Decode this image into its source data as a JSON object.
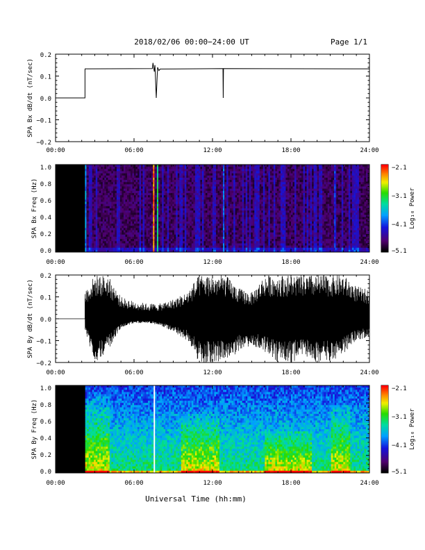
{
  "header": {
    "title": "2018/02/06  00:00−24:00 UT",
    "page": "Page 1/1"
  },
  "footer": {
    "xlabel": "Universal Time (hh:mm)"
  },
  "chart_data": [
    {
      "type": "line",
      "id": "bx-dbdt",
      "ylabel": "SPA Bx dB/dt (nT/sec)",
      "xlim": [
        0,
        24
      ],
      "ylim": [
        -0.2,
        0.2
      ],
      "x_ticks": [
        "00:00",
        "06:00",
        "12:00",
        "18:00",
        "24:00"
      ],
      "y_ticks": [
        "0.2",
        "0.1",
        "0.0",
        "−0.1",
        "−0.2"
      ],
      "x": [
        0,
        2.25,
        2.25,
        2.26,
        7.4,
        7.45,
        7.55,
        7.6,
        7.7,
        7.8,
        7.9,
        8.0,
        12.8,
        12.82,
        12.84,
        24
      ],
      "values": [
        0.0,
        0.0,
        0.13,
        0.133,
        0.134,
        0.16,
        0.12,
        0.15,
        0.0,
        0.14,
        0.125,
        0.132,
        0.134,
        0.0,
        0.134,
        0.133
      ]
    },
    {
      "type": "heatmap",
      "id": "bx-spectrogram",
      "ylabel": "SPA Bx Freq (Hz)",
      "xlim": [
        0,
        24
      ],
      "ylim": [
        0.0,
        1.0
      ],
      "x_ticks": [
        "00:00",
        "06:00",
        "12:00",
        "18:00",
        "24:00"
      ],
      "y_ticks": [
        "1.0",
        "0.8",
        "0.6",
        "0.4",
        "0.2",
        "0.0"
      ],
      "colorbar": {
        "label": "Log₁₀ Power",
        "range": [
          -5.1,
          -2.1
        ],
        "ticks": [
          "−2.1",
          "−3.1",
          "−4.1",
          "−5.1"
        ]
      },
      "no_data_until": 2.25,
      "background_level": -4.8,
      "bright_lines": [
        {
          "x": 2.25,
          "level": -3.9
        },
        {
          "x": 7.45,
          "level": -2.4
        },
        {
          "x": 7.75,
          "level": -3.3
        },
        {
          "x": 12.8,
          "level": -4.0
        },
        {
          "x": 21.3,
          "level": -4.2
        }
      ]
    },
    {
      "type": "line",
      "id": "by-dbdt",
      "ylabel": "SPA By dB/dt (nT/sec)",
      "xlim": [
        0,
        24
      ],
      "ylim": [
        -0.2,
        0.2
      ],
      "x_ticks": [
        "00:00",
        "06:00",
        "12:00",
        "18:00",
        "24:00"
      ],
      "y_ticks": [
        "0.2",
        "0.1",
        "0.0",
        "−0.1",
        "−0.2"
      ],
      "flat_until": 2.25,
      "flat_value": 0.0,
      "envelope": {
        "x": [
          2.25,
          3,
          4,
          5,
          6,
          7,
          8,
          9,
          10,
          11,
          12,
          13,
          14,
          15,
          16,
          17,
          18,
          19,
          20,
          21,
          22,
          23,
          24
        ],
        "upper": [
          0.13,
          0.2,
          0.2,
          0.1,
          0.08,
          0.07,
          0.07,
          0.09,
          0.12,
          0.2,
          0.2,
          0.2,
          0.14,
          0.12,
          0.2,
          0.2,
          0.2,
          0.2,
          0.2,
          0.2,
          0.2,
          0.15,
          0.13
        ],
        "lower": [
          -0.06,
          -0.2,
          -0.15,
          -0.04,
          -0.02,
          -0.02,
          -0.03,
          -0.06,
          -0.1,
          -0.2,
          -0.2,
          -0.2,
          -0.15,
          -0.12,
          -0.15,
          -0.2,
          -0.2,
          -0.18,
          -0.2,
          -0.2,
          -0.16,
          -0.1,
          -0.08
        ]
      }
    },
    {
      "type": "heatmap",
      "id": "by-spectrogram",
      "ylabel": "SPA By Freq (Hz)",
      "xlim": [
        0,
        24
      ],
      "ylim": [
        0.0,
        1.0
      ],
      "x_ticks": [
        "00:00",
        "06:00",
        "12:00",
        "18:00",
        "24:00"
      ],
      "y_ticks": [
        "1.0",
        "0.8",
        "0.6",
        "0.4",
        "0.2",
        "0.0"
      ],
      "colorbar": {
        "label": "Log₁₀ Power",
        "range": [
          -5.1,
          -2.1
        ],
        "ticks": [
          "−2.1",
          "−3.1",
          "−4.1",
          "−5.1"
        ]
      },
      "no_data_until": 2.25,
      "gap_line_x": 7.5,
      "active_bands": [
        {
          "x0": 2.25,
          "x1": 4.0,
          "top": 0.9
        },
        {
          "x0": 9.5,
          "x1": 12.5,
          "top": 0.7
        },
        {
          "x0": 16.0,
          "x1": 19.5,
          "top": 0.5
        },
        {
          "x0": 21.0,
          "x1": 22.5,
          "top": 0.8
        }
      ]
    }
  ],
  "colors": {
    "background": "#ffffff",
    "axes": "#000000",
    "trace": "#000000",
    "no_data": "#000000",
    "spectrogram_base": "#2a0033"
  }
}
